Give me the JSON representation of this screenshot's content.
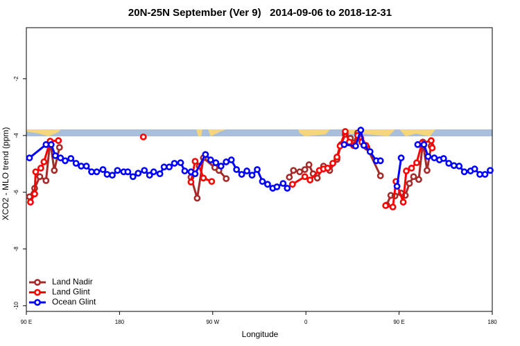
{
  "chart_data": {
    "type": "line",
    "title": "20N-25N September (Ver 9)   2014-09-06 to 2018-12-31",
    "x_label": "Longitude",
    "y_label": "XCO2 - MLO trend (ppm)",
    "xlim": [
      90,
      540
    ],
    "ylim": [
      -10.2,
      -0.2
    ],
    "xticks": [
      {
        "value": 90,
        "label": "90 E"
      },
      180,
      {
        "value": 270,
        "label": "90 W"
      },
      {
        "value": 360,
        "label": "0"
      },
      {
        "value": 450,
        "label": "90 E"
      },
      {
        "value": 540,
        "label": "180"
      }
    ],
    "yticks": [
      -10,
      -8,
      -6,
      -4,
      -2
    ],
    "legend": "bottomleft",
    "series": [
      {
        "name": "Land Nadir",
        "color": "#a52a2a",
        "x": [
          93,
          98,
          103,
          109,
          113,
          117,
          122,
          null,
          249,
          255,
          261,
          272,
          276,
          283,
          null,
          344,
          348,
          354,
          359,
          363,
          367,
          371,
          377,
          383,
          390,
          394,
          398,
          403,
          406,
          410,
          413,
          419,
          432,
          null,
          438,
          442,
          446,
          452,
          456,
          460,
          464,
          469,
          473,
          477,
          481
        ],
        "values": [
          -6.16,
          -5.86,
          -5.45,
          -5.59,
          -4.2,
          -5.23,
          -4.42,
          null,
          -5.47,
          -6.21,
          -4.79,
          -5.13,
          -5.23,
          -5.52,
          null,
          -5.47,
          -5.23,
          -5.28,
          -5.2,
          -5.03,
          -5.35,
          -5.5,
          -5.08,
          -5.23,
          -4.84,
          -4.32,
          -3.96,
          -4.1,
          -4.27,
          -3.91,
          -4.1,
          -4.42,
          -5.42,
          null,
          -6.45,
          -6.11,
          -6.13,
          -6.03,
          -6.11,
          -5.69,
          -5.45,
          -5.55,
          -4.23,
          -5.23,
          -4.37
        ]
      },
      {
        "name": "Land Glint",
        "color": "#ff0000",
        "x": [
          94,
          98,
          99,
          104,
          107,
          113,
          121,
          null,
          203,
          null,
          249,
          253,
          257,
          261,
          269,
          null,
          347,
          359,
          364,
          373,
          377,
          381,
          386,
          390,
          393,
          398,
          402,
          406,
          410,
          414,
          418,
          null,
          437,
          444,
          447,
          454,
          457,
          462,
          467,
          472,
          481,
          482
        ],
        "values": [
          -6.35,
          -6.06,
          -5.28,
          -5.15,
          -4.93,
          -4.2,
          -4.18,
          null,
          -4.05,
          null,
          -5.64,
          -4.91,
          -5.08,
          -5.5,
          -5.62,
          null,
          -5.72,
          -5.45,
          -5.57,
          -5.23,
          -5.18,
          -5.15,
          -4.98,
          -4.76,
          -4.37,
          -3.86,
          -4.23,
          -4.35,
          -4.0,
          -4.23,
          -4.35,
          null,
          -6.47,
          -6.52,
          -5.62,
          -6.35,
          -5.25,
          -5.15,
          -4.96,
          -4.27,
          -4.18,
          -4.44
        ]
      },
      {
        "name": "Ocean Glint",
        "color": "#0000ff",
        "x": [
          93,
          109,
          114,
          118,
          123,
          127.5,
          133,
          138,
          143,
          148,
          153,
          158,
          164,
          168,
          173,
          178,
          184,
          188,
          193,
          198,
          204,
          209,
          213,
          219,
          223,
          228,
          233,
          239,
          243,
          249,
          253,
          263,
          268,
          273,
          278,
          283,
          288,
          293,
          298,
          303,
          308,
          313,
          318,
          323,
          328,
          332,
          338,
          342,
          null,
          397,
          408,
          413,
          416,
          422,
          428,
          432,
          null,
          448,
          452,
          null,
          468,
          474,
          478,
          484,
          489,
          493,
          498,
          503,
          508,
          513,
          519,
          523,
          528,
          533,
          538
        ],
        "values": [
          -4.79,
          -4.32,
          -4.32,
          -4.71,
          -4.79,
          -4.89,
          -4.81,
          -4.98,
          -5.08,
          -5.08,
          -5.28,
          -5.28,
          -5.2,
          -5.37,
          -5.4,
          -5.23,
          -5.28,
          -5.28,
          -5.45,
          -5.33,
          -5.23,
          -5.4,
          -5.28,
          -5.35,
          -5.11,
          -5.11,
          -4.98,
          -4.96,
          -5.25,
          -5.28,
          -5.35,
          -4.67,
          -4.86,
          -4.96,
          -5.08,
          -4.93,
          -4.86,
          -5.2,
          -5.37,
          -5.25,
          -5.4,
          -5.2,
          -5.62,
          -5.72,
          -5.86,
          -5.81,
          -5.69,
          -5.86,
          null,
          -4.32,
          -4.37,
          -3.81,
          -4.35,
          -4.57,
          -4.89,
          -4.89,
          null,
          -5.79,
          -4.79,
          null,
          -4.32,
          -4.32,
          -4.74,
          -4.79,
          -4.86,
          -4.81,
          -4.98,
          -5.06,
          -5.08,
          -5.28,
          -5.25,
          -5.18,
          -5.37,
          -5.37,
          -5.23
        ]
      }
    ]
  }
}
